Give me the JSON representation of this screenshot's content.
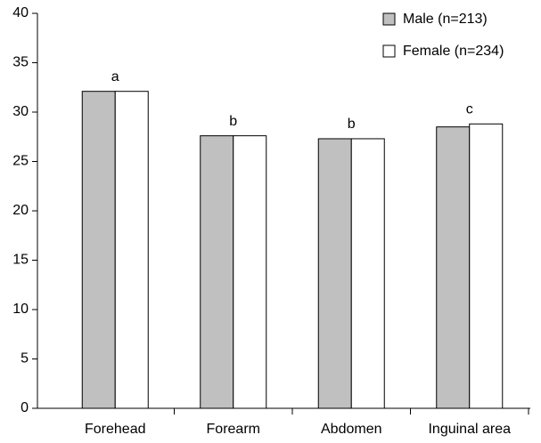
{
  "chart_data": {
    "type": "bar",
    "categories": [
      "Forehead",
      "Forearm",
      "Abdomen",
      "Inguinal area"
    ],
    "series": [
      {
        "name": "Male (n=213)",
        "color": "#c0c0c0",
        "values": [
          32.1,
          27.6,
          27.3,
          28.5
        ]
      },
      {
        "name": "Female (n=234)",
        "color": "#ffffff",
        "values": [
          32.1,
          27.6,
          27.3,
          28.8
        ]
      }
    ],
    "annotations": [
      "a",
      "b",
      "b",
      "c"
    ],
    "ylim": [
      0,
      40
    ],
    "yticks": [
      0,
      5,
      10,
      15,
      20,
      25,
      30,
      35,
      40
    ],
    "legend": "upper right"
  }
}
